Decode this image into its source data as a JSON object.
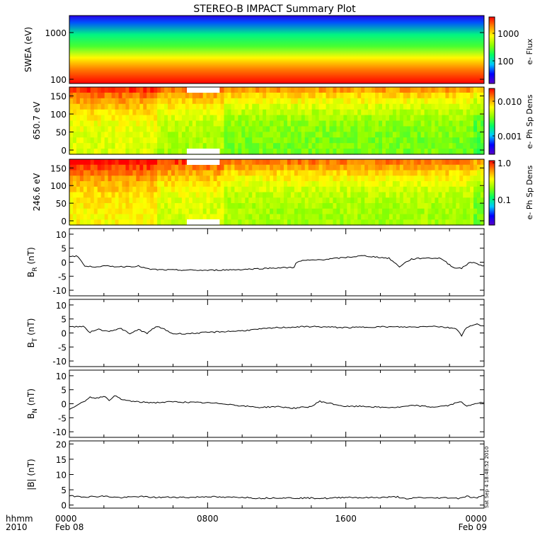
{
  "title": "STEREO-B IMPACT Summary Plot",
  "footer": {
    "left_label_1": "hhmm",
    "left_label_2": "2010",
    "x_ticks": [
      {
        "hhmm": "0000",
        "date": "Feb 08"
      },
      {
        "hhmm": "0800",
        "date": ""
      },
      {
        "hhmm": "1600",
        "date": ""
      },
      {
        "hhmm": "0000",
        "date": "Feb 09"
      }
    ],
    "timestamp": "Sat Sep  4 18:48:52 2010"
  },
  "colors": {
    "axis": "#000000",
    "trace": "#000000",
    "colormap": [
      "#5a00c8",
      "#0000ff",
      "#00c8ff",
      "#00ff64",
      "#8cff00",
      "#ffff00",
      "#ff8c00",
      "#ff0000"
    ]
  },
  "chart_data": [
    {
      "type": "heatmap",
      "ylabel": "SWEA (eV)",
      "y_scale": "log",
      "y_ticks": [
        "1000",
        "100"
      ],
      "xlim_hours": [
        0,
        24
      ],
      "colorbar": {
        "label": "e- Flux",
        "scale": "log",
        "ticks": [
          "1000",
          "100"
        ]
      },
      "description_levels": [
        {
          "energy_eV": 1800,
          "level": 0.08
        },
        {
          "energy_eV": 1200,
          "level": 0.2
        },
        {
          "energy_eV": 700,
          "level": 0.4
        },
        {
          "energy_eV": 400,
          "level": 0.55
        },
        {
          "energy_eV": 200,
          "level": 0.8
        },
        {
          "energy_eV": 100,
          "level": 0.95
        }
      ]
    },
    {
      "type": "heatmap",
      "ylabel": "650.7 eV",
      "ylim": [
        0,
        180
      ],
      "y_ticks": [
        "150",
        "100",
        "50",
        "0"
      ],
      "xlim_hours": [
        0,
        24
      ],
      "data_gap_hours": [
        6.8,
        8.7
      ],
      "colorbar": {
        "label": "e- Ph Sp Dens",
        "scale": "log",
        "ticks": [
          "0.010",
          "0.001"
        ]
      }
    },
    {
      "type": "heatmap",
      "ylabel": "246.6 eV",
      "ylim": [
        0,
        180
      ],
      "y_ticks": [
        "150",
        "100",
        "50",
        "0"
      ],
      "xlim_hours": [
        0,
        24
      ],
      "data_gap_hours": [
        6.8,
        8.7
      ],
      "colorbar": {
        "label": "e- Ph Sp Dens",
        "scale": "log",
        "ticks": [
          "1.0",
          "0.1"
        ]
      }
    },
    {
      "type": "line",
      "ylabel": "B",
      "ylabel_sub": "R",
      "ylabel_unit": "(nT)",
      "ylim": [
        -12,
        12
      ],
      "y_ticks": [
        10,
        5,
        0,
        -5,
        -10
      ],
      "x": [
        0,
        0.5,
        0.9,
        1.3,
        2,
        3,
        4,
        4.6,
        5.2,
        6,
        8,
        10,
        12,
        13,
        13.1,
        13.5,
        14,
        15,
        16,
        17,
        18.5,
        19.1,
        19.4,
        19.8,
        20.5,
        21.5,
        22.2,
        22.7,
        23.2,
        24
      ],
      "y": [
        2.2,
        2.1,
        -1.5,
        -1.6,
        -1.4,
        -1.6,
        -1.4,
        -2.5,
        -2.7,
        -2.8,
        -2.9,
        -2.6,
        -2.0,
        -1.9,
        -0.3,
        0.6,
        0.7,
        1.1,
        1.7,
        2.3,
        1.4,
        -1.6,
        -0.3,
        1.1,
        1.5,
        1.4,
        -1.8,
        -2.2,
        0.1,
        -1.3
      ]
    },
    {
      "type": "line",
      "ylabel": "B",
      "ylabel_sub": "T",
      "ylabel_unit": "(nT)",
      "ylim": [
        -12,
        12
      ],
      "y_ticks": [
        10,
        5,
        0,
        -5,
        -10
      ],
      "x": [
        0,
        0.8,
        1.2,
        1.6,
        2.2,
        3,
        3.5,
        4,
        4.5,
        5,
        5.4,
        6,
        7,
        8,
        10,
        12,
        14,
        16,
        18,
        20,
        21,
        22.4,
        22.7,
        23,
        23.6,
        24
      ],
      "y": [
        2.2,
        2.3,
        0.2,
        1.4,
        0.6,
        1.6,
        -0.4,
        1.3,
        -0.2,
        2.3,
        1.6,
        -0.3,
        -0.2,
        0.2,
        0.8,
        1.9,
        2.3,
        1.9,
        2.2,
        2.1,
        2.5,
        1.6,
        -0.9,
        2.1,
        3.1,
        2.5
      ]
    },
    {
      "type": "line",
      "ylabel": "B",
      "ylabel_sub": "N",
      "ylabel_unit": "(nT)",
      "ylim": [
        -12,
        12
      ],
      "y_ticks": [
        10,
        5,
        0,
        -5,
        -10
      ],
      "x": [
        0,
        0.3,
        0.8,
        1.2,
        1.6,
        2,
        2.3,
        2.6,
        3,
        3.5,
        4,
        5,
        6,
        8,
        9,
        10,
        11,
        12,
        13,
        14,
        14.5,
        15,
        16,
        17,
        18,
        19,
        20,
        21,
        22,
        22.6,
        23,
        23.5,
        24
      ],
      "y": [
        -1.8,
        -1.2,
        0.6,
        2.4,
        2.0,
        2.8,
        1.1,
        3.0,
        1.5,
        1.0,
        0.6,
        0.4,
        0.7,
        0.3,
        0.0,
        -0.8,
        -1.3,
        -1.0,
        -1.6,
        -1.0,
        0.9,
        0.2,
        -1.0,
        -0.9,
        -1.3,
        -1.3,
        -0.6,
        -1.2,
        -0.6,
        0.9,
        -1.0,
        0.2,
        0.4
      ]
    },
    {
      "type": "line",
      "ylabel": "|B|",
      "ylabel_unit": "(nT)",
      "ylim": [
        -1,
        21
      ],
      "y_ticks": [
        20,
        15,
        10,
        5,
        0
      ],
      "x": [
        0,
        1,
        2,
        3,
        4,
        5,
        6,
        7,
        8,
        9,
        10,
        11,
        12,
        13,
        14,
        15,
        16,
        17,
        18,
        19,
        19.6,
        20,
        21,
        22,
        22.5,
        23,
        23.5,
        24
      ],
      "y": [
        3.0,
        2.7,
        2.9,
        2.4,
        2.8,
        2.5,
        2.6,
        2.5,
        2.8,
        2.5,
        2.6,
        2.2,
        2.4,
        2.3,
        2.3,
        2.2,
        2.6,
        2.4,
        2.5,
        2.7,
        1.8,
        2.5,
        2.3,
        2.4,
        2.2,
        2.9,
        2.3,
        3.1
      ]
    }
  ]
}
